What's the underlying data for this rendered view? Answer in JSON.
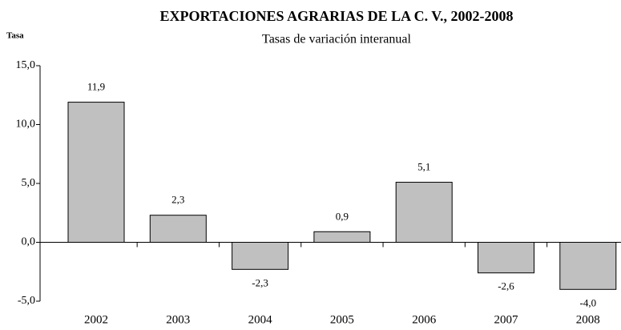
{
  "chart_data": {
    "type": "bar",
    "title": "EXPORTACIONES AGRARIAS DE LA C. V., 2002-2008",
    "subtitle": "Tasas de variación interanual",
    "y_label": "Tasa",
    "categories": [
      "2002",
      "2003",
      "2004",
      "2005",
      "2006",
      "2007",
      "2008"
    ],
    "values": [
      11.9,
      2.3,
      -2.3,
      0.9,
      5.1,
      -2.6,
      -4.0
    ],
    "value_labels": [
      "11,9",
      "2,3",
      "-2,3",
      "0,9",
      "5,1",
      "-2,6",
      "-4,0"
    ],
    "color": "#c0c0c0",
    "ylim": [
      -5,
      15
    ],
    "yticks": [
      {
        "value": -5,
        "label": "-5,0"
      },
      {
        "value": 0,
        "label": "0,0"
      },
      {
        "value": 5,
        "label": "5,0"
      },
      {
        "value": 10,
        "label": "10,0"
      },
      {
        "value": 15,
        "label": "15,0"
      }
    ],
    "grid": false
  }
}
